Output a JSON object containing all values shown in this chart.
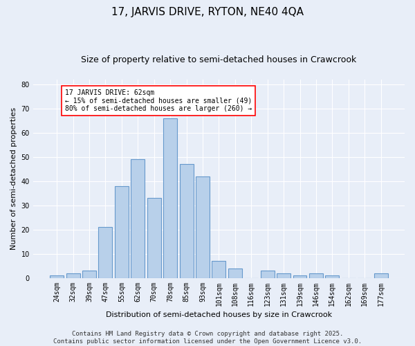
{
  "title": "17, JARVIS DRIVE, RYTON, NE40 4QA",
  "subtitle": "Size of property relative to semi-detached houses in Crawcrook",
  "xlabel": "Distribution of semi-detached houses by size in Crawcrook",
  "ylabel": "Number of semi-detached properties",
  "bar_color": "#b8d0ea",
  "bar_edge_color": "#6699cc",
  "background_color": "#e8eef8",
  "categories": [
    "24sqm",
    "32sqm",
    "39sqm",
    "47sqm",
    "55sqm",
    "62sqm",
    "70sqm",
    "78sqm",
    "85sqm",
    "93sqm",
    "101sqm",
    "108sqm",
    "116sqm",
    "123sqm",
    "131sqm",
    "139sqm",
    "146sqm",
    "154sqm",
    "162sqm",
    "169sqm",
    "177sqm"
  ],
  "values": [
    1,
    2,
    3,
    21,
    38,
    49,
    33,
    66,
    47,
    42,
    7,
    4,
    0,
    3,
    2,
    1,
    2,
    1,
    0,
    0,
    2
  ],
  "annotation_text": "17 JARVIS DRIVE: 62sqm\n← 15% of semi-detached houses are smaller (49)\n80% of semi-detached houses are larger (260) →",
  "ylim": [
    0,
    82
  ],
  "yticks": [
    0,
    10,
    20,
    30,
    40,
    50,
    60,
    70,
    80
  ],
  "footer": "Contains HM Land Registry data © Crown copyright and database right 2025.\nContains public sector information licensed under the Open Government Licence v3.0.",
  "grid_color": "#ffffff",
  "title_fontsize": 11,
  "subtitle_fontsize": 9,
  "axis_label_fontsize": 8,
  "tick_fontsize": 7,
  "footer_fontsize": 6.5,
  "annotation_fontsize": 7
}
